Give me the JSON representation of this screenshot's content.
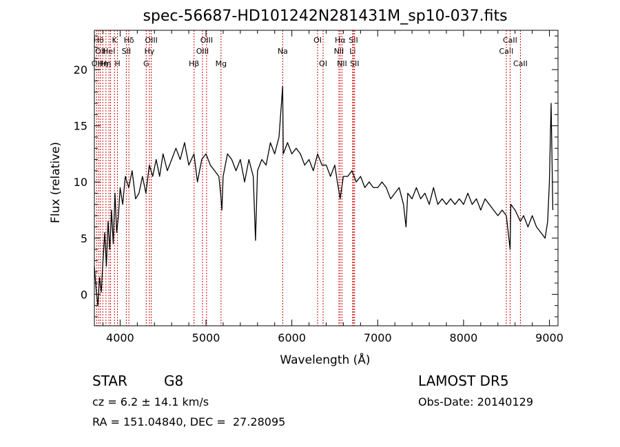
{
  "chart_data": {
    "type": "line",
    "title": "spec-56687-HD101242N281431M_sp10-037.fits",
    "xlabel": "Wavelength (Å)",
    "ylabel": "Flux (relative)",
    "xlim": [
      3700,
      9100
    ],
    "ylim": [
      -2.8,
      23.5
    ],
    "x_ticks": [
      4000,
      5000,
      6000,
      7000,
      8000,
      9000
    ],
    "x_tick_labels": [
      "4000",
      "5000",
      "6000",
      "7000",
      "8000",
      "9000"
    ],
    "y_ticks": [
      0,
      5,
      10,
      15,
      20
    ],
    "y_tick_labels": [
      "0",
      "5",
      "10",
      "15",
      "20"
    ],
    "grid": false,
    "line_color": "#000000",
    "marker_color": "#cc0000",
    "series": [
      {
        "x": [
          3700,
          3720,
          3740,
          3760,
          3780,
          3800,
          3820,
          3840,
          3860,
          3880,
          3900,
          3920,
          3940,
          3960,
          3980,
          4000,
          4030,
          4060,
          4100,
          4140,
          4180,
          4220,
          4260,
          4300,
          4340,
          4380,
          4420,
          4460,
          4500,
          4550,
          4600,
          4650,
          4700,
          4750,
          4800,
          4860,
          4900,
          4950,
          5000,
          5050,
          5100,
          5150,
          5170,
          5185,
          5200,
          5250,
          5300,
          5350,
          5400,
          5450,
          5500,
          5550,
          5577,
          5600,
          5650,
          5700,
          5750,
          5800,
          5850,
          5893,
          5900,
          5950,
          6000,
          6050,
          6100,
          6150,
          6200,
          6250,
          6300,
          6350,
          6400,
          6450,
          6500,
          6530,
          6563,
          6600,
          6650,
          6700,
          6750,
          6800,
          6850,
          6900,
          6950,
          7000,
          7050,
          7100,
          7150,
          7200,
          7250,
          7300,
          7330,
          7350,
          7400,
          7450,
          7500,
          7550,
          7600,
          7650,
          7700,
          7750,
          7800,
          7850,
          7900,
          7950,
          8000,
          8050,
          8100,
          8150,
          8200,
          8250,
          8300,
          8350,
          8400,
          8450,
          8498,
          8542,
          8550,
          8600,
          8662,
          8700,
          8750,
          8800,
          8850,
          8900,
          8950,
          8980,
          9000,
          9020,
          9040
        ],
        "y": [
          2.5,
          0.5,
          -1.0,
          1.5,
          0.2,
          3.0,
          5.5,
          2.5,
          6.5,
          4.0,
          7.5,
          4.5,
          9.0,
          5.5,
          7.0,
          9.5,
          8.0,
          10.5,
          9.5,
          11.0,
          8.5,
          9.0,
          10.5,
          9.0,
          11.5,
          10.5,
          12.0,
          10.5,
          12.5,
          11.0,
          12.0,
          13.0,
          12.0,
          13.5,
          11.5,
          12.5,
          10.0,
          12.0,
          12.5,
          11.5,
          11.0,
          10.5,
          9.0,
          7.5,
          10.5,
          12.5,
          12.0,
          11.0,
          12.0,
          10.0,
          12.0,
          10.5,
          4.8,
          11.0,
          12.0,
          11.5,
          13.5,
          12.5,
          14.0,
          18.5,
          12.5,
          13.5,
          12.5,
          13.0,
          12.5,
          11.5,
          12.0,
          11.0,
          12.5,
          11.5,
          11.5,
          10.5,
          11.5,
          10.0,
          8.5,
          10.5,
          10.5,
          11.0,
          10.0,
          10.5,
          9.5,
          10.0,
          9.5,
          9.5,
          10.0,
          9.5,
          8.5,
          9.0,
          9.5,
          8.0,
          6.0,
          9.0,
          8.5,
          9.5,
          8.5,
          9.0,
          8.0,
          9.5,
          8.0,
          8.5,
          8.0,
          8.5,
          8.0,
          8.5,
          8.0,
          9.0,
          8.0,
          8.5,
          7.5,
          8.5,
          8.0,
          7.5,
          7.0,
          7.5,
          7.0,
          4.0,
          8.0,
          7.5,
          6.5,
          7.0,
          6.0,
          7.0,
          6.0,
          5.5,
          5.0,
          6.5,
          10.0,
          17.0,
          7.5
        ]
      }
    ],
    "line_markers": [
      {
        "wavelength": 3727,
        "label": "OII",
        "row": 3
      },
      {
        "wavelength": 3750,
        "label": "Hθ",
        "row": 1
      },
      {
        "wavelength": 3770,
        "label": "OII",
        "row": 2
      },
      {
        "wavelength": 3798,
        "label": "Hη",
        "row": 3
      },
      {
        "wavelength": 3835,
        "label": "Hη",
        "row": 3
      },
      {
        "wavelength": 3870,
        "label": "HeI",
        "row": 2
      },
      {
        "wavelength": 3889,
        "label": "",
        "row": 0
      },
      {
        "wavelength": 3934,
        "label": "K",
        "row": 1
      },
      {
        "wavelength": 3969,
        "label": "H",
        "row": 3
      },
      {
        "wavelength": 4072,
        "label": "SII",
        "row": 2
      },
      {
        "wavelength": 4102,
        "label": "Hδ",
        "row": 1
      },
      {
        "wavelength": 4304,
        "label": "G",
        "row": 3
      },
      {
        "wavelength": 4341,
        "label": "Hγ",
        "row": 2
      },
      {
        "wavelength": 4363,
        "label": "OIII",
        "row": 1
      },
      {
        "wavelength": 4861,
        "label": "Hβ",
        "row": 3
      },
      {
        "wavelength": 4959,
        "label": "OIII",
        "row": 2
      },
      {
        "wavelength": 5007,
        "label": "OIII",
        "row": 1
      },
      {
        "wavelength": 5175,
        "label": "Mg",
        "row": 3
      },
      {
        "wavelength": 5894,
        "label": "Na",
        "row": 2
      },
      {
        "wavelength": 6300,
        "label": "OI",
        "row": 1
      },
      {
        "wavelength": 6364,
        "label": "OI",
        "row": 3
      },
      {
        "wavelength": 6548,
        "label": "NII",
        "row": 2
      },
      {
        "wavelength": 6563,
        "label": "Hα",
        "row": 1
      },
      {
        "wavelength": 6584,
        "label": "NII",
        "row": 3
      },
      {
        "wavelength": 6708,
        "label": "Li",
        "row": 2
      },
      {
        "wavelength": 6717,
        "label": "SII",
        "row": 1
      },
      {
        "wavelength": 6731,
        "label": "SII",
        "row": 3
      },
      {
        "wavelength": 8498,
        "label": "CaII",
        "row": 2
      },
      {
        "wavelength": 8542,
        "label": "CaII",
        "row": 1
      },
      {
        "wavelength": 8662,
        "label": "CaII",
        "row": 3
      }
    ]
  },
  "info": {
    "object_class": "STAR",
    "subclass": "G8",
    "velocity": "cz = 6.2 ± 14.1 km/s",
    "coordinates": "RA = 151.04840, DEC =  27.28095",
    "survey": "LAMOST DR5",
    "obs_date": "Obs-Date: 20140129"
  }
}
